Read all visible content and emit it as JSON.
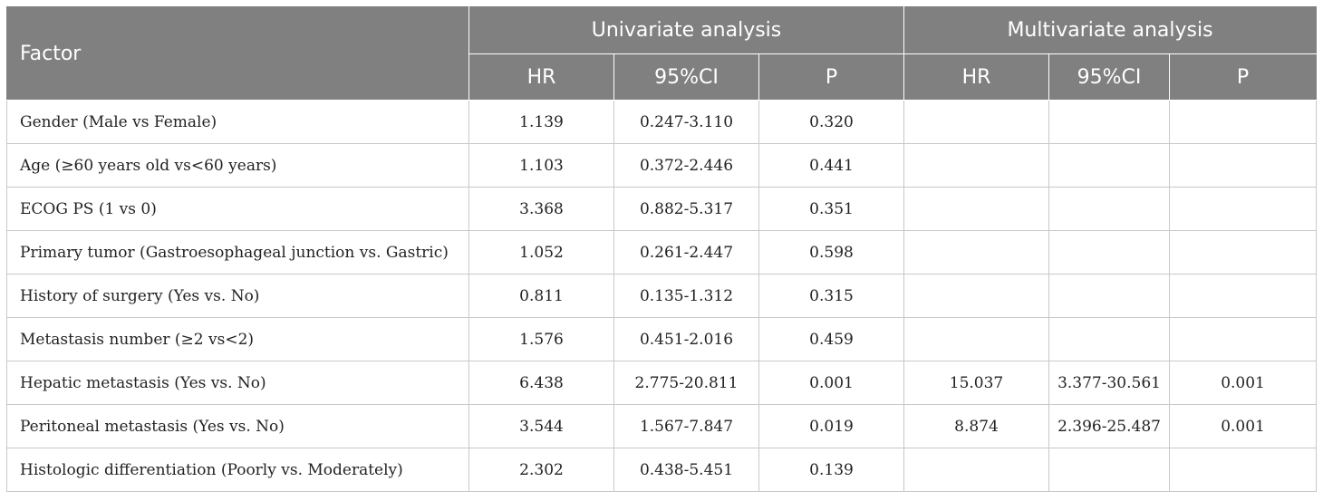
{
  "header": {
    "factor": "Factor",
    "univariate": "Univariate analysis",
    "multivariate": "Multivariate analysis",
    "hr": "HR",
    "ci": "95%CI",
    "p": "P"
  },
  "rows": [
    {
      "factor": "Gender (Male vs Female)",
      "uni_hr": "1.139",
      "uni_ci": "0.247-3.110",
      "uni_p": "0.320",
      "multi_hr": "",
      "multi_ci": "",
      "multi_p": ""
    },
    {
      "factor": "Age (≥60 years old vs<60 years)",
      "uni_hr": "1.103",
      "uni_ci": "0.372-2.446",
      "uni_p": "0.441",
      "multi_hr": "",
      "multi_ci": "",
      "multi_p": ""
    },
    {
      "factor": "ECOG PS (1 vs 0)",
      "uni_hr": "3.368",
      "uni_ci": "0.882-5.317",
      "uni_p": "0.351",
      "multi_hr": "",
      "multi_ci": "",
      "multi_p": ""
    },
    {
      "factor": "Primary tumor (Gastroesophageal junction vs. Gastric)",
      "uni_hr": "1.052",
      "uni_ci": "0.261-2.447",
      "uni_p": "0.598",
      "multi_hr": "",
      "multi_ci": "",
      "multi_p": ""
    },
    {
      "factor": "History of surgery (Yes vs. No)",
      "uni_hr": "0.811",
      "uni_ci": "0.135-1.312",
      "uni_p": "0.315",
      "multi_hr": "",
      "multi_ci": "",
      "multi_p": ""
    },
    {
      "factor": "Metastasis number (≥2 vs<2)",
      "uni_hr": "1.576",
      "uni_ci": "0.451-2.016",
      "uni_p": "0.459",
      "multi_hr": "",
      "multi_ci": "",
      "multi_p": ""
    },
    {
      "factor": "Hepatic metastasis (Yes vs. No)",
      "uni_hr": "6.438",
      "uni_ci": "2.775-20.811",
      "uni_p": "0.001",
      "multi_hr": "15.037",
      "multi_ci": "3.377-30.561",
      "multi_p": "0.001"
    },
    {
      "factor": "Peritoneal metastasis (Yes vs. No)",
      "uni_hr": "3.544",
      "uni_ci": "1.567-7.847",
      "uni_p": "0.019",
      "multi_hr": "8.874",
      "multi_ci": "2.396-25.487",
      "multi_p": "0.001"
    },
    {
      "factor": "Histologic differentiation (Poorly vs. Moderately)",
      "uni_hr": "2.302",
      "uni_ci": "0.438-5.451",
      "uni_p": "0.139",
      "multi_hr": "",
      "multi_ci": "",
      "multi_p": ""
    }
  ],
  "colors": {
    "header_bg": "#808080",
    "header_text": "#ffffff",
    "grid": "#c8c8c8"
  }
}
